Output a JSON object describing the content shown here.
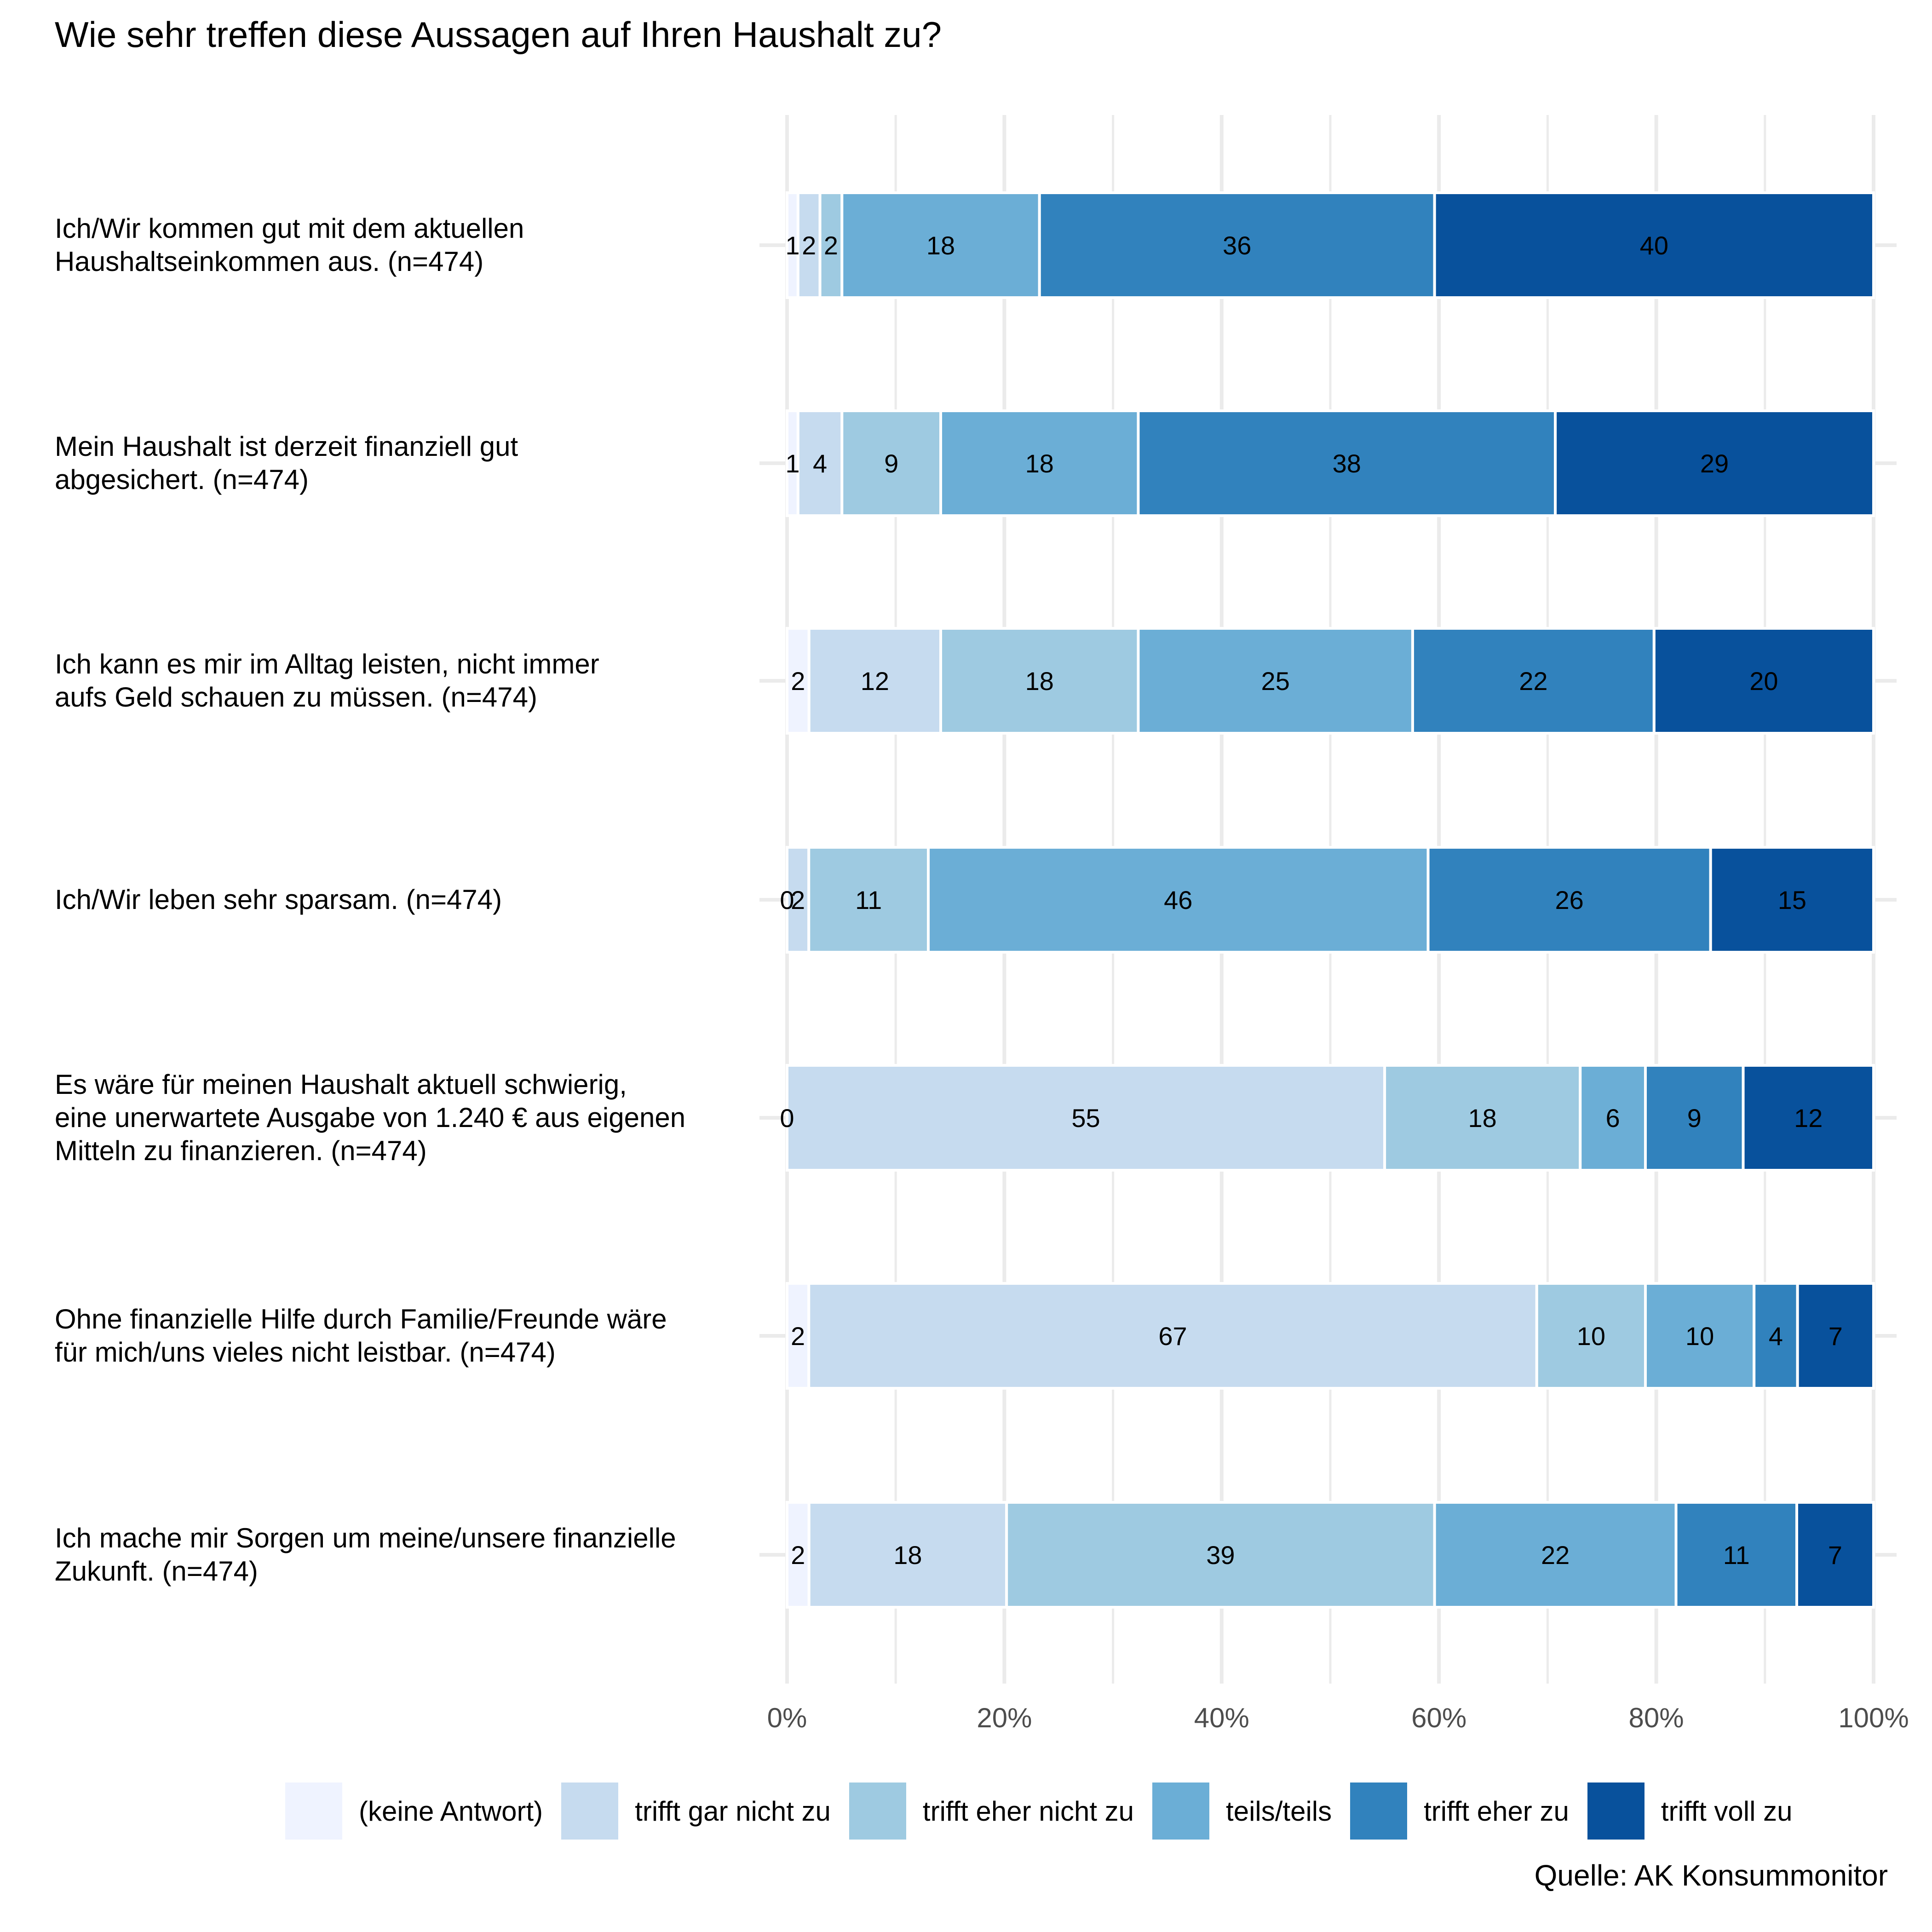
{
  "chart_data": {
    "type": "bar",
    "orientation": "horizontal",
    "stacked": true,
    "normalized_percent": true,
    "title": "Wie sehr treffen diese Aussagen auf Ihren Haushalt zu?",
    "xlabel": "",
    "ylabel": "",
    "xlim": [
      0,
      100
    ],
    "x_ticks": [
      "0%",
      "20%",
      "40%",
      "60%",
      "80%",
      "100%"
    ],
    "grid": true,
    "legend_position": "bottom",
    "source": "Quelle: AK Konsummonitor",
    "categories": [
      "Ich/Wir kommen gut mit dem aktuellen Haushaltseinkommen aus. (n=474)",
      "Mein Haushalt ist derzeit finanziell gut abgesichert. (n=474)",
      "Ich kann es mir im Alltag leisten, nicht immer aufs Geld schauen zu müssen. (n=474)",
      "Ich/Wir leben sehr sparsam. (n=474)",
      "Es wäre für meinen Haushalt aktuell schwierig, eine unerwartete Ausgabe von 1.240 € aus eigenen Mitteln zu finanzieren. (n=474)",
      "Ohne finanzielle Hilfe durch Familie/Freunde wäre für mich/uns vieles nicht leistbar. (n=474)",
      "Ich mache mir Sorgen um meine/unsere finanzielle Zukunft. (n=474)"
    ],
    "category_lines": [
      [
        "Ich/Wir kommen gut mit dem aktuellen",
        "Haushaltseinkommen aus. (n=474)"
      ],
      [
        "Mein Haushalt ist derzeit finanziell gut",
        "abgesichert. (n=474)"
      ],
      [
        "Ich kann es mir im Alltag leisten, nicht immer",
        "aufs Geld schauen zu müssen. (n=474)"
      ],
      [
        "Ich/Wir leben sehr sparsam. (n=474)"
      ],
      [
        "Es wäre für meinen Haushalt aktuell schwierig,",
        "eine unerwartete Ausgabe von 1.240 € aus eigenen",
        "Mitteln zu finanzieren. (n=474)"
      ],
      [
        "Ohne finanzielle Hilfe durch Familie/Freunde wäre",
        "für mich/uns vieles nicht leistbar. (n=474)"
      ],
      [
        "Ich mache mir Sorgen um meine/unsere finanzielle",
        "Zukunft. (n=474)"
      ]
    ],
    "series": [
      {
        "name": "(keine Antwort)",
        "color": "#eff3ff",
        "values": [
          1,
          1,
          2,
          0,
          0,
          2,
          2
        ]
      },
      {
        "name": "trifft gar nicht zu",
        "color": "#c6dbef",
        "values": [
          2,
          4,
          12,
          2,
          55,
          67,
          18
        ]
      },
      {
        "name": "trifft eher nicht zu",
        "color": "#9ecae1",
        "values": [
          2,
          9,
          18,
          11,
          18,
          10,
          39
        ]
      },
      {
        "name": "teils/teils",
        "color": "#6baed6",
        "values": [
          18,
          18,
          25,
          46,
          6,
          10,
          22
        ]
      },
      {
        "name": "trifft eher zu",
        "color": "#3182bd",
        "values": [
          36,
          38,
          22,
          26,
          9,
          4,
          11
        ]
      },
      {
        "name": "trifft voll zu",
        "color": "#08519c",
        "values": [
          40,
          29,
          20,
          15,
          12,
          7,
          7
        ]
      }
    ]
  },
  "colors": {
    "grid": "#ebebeb",
    "axis_text": "#4d4d4d",
    "label_text": "#000000"
  }
}
